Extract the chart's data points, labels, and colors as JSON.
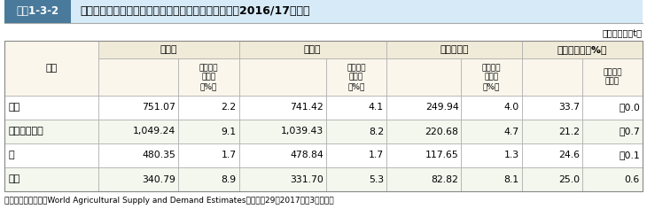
{
  "title_box_label": "図表1-3-2",
  "title_text": "世界全体の穀物等の生産量、消費量、期末在庫量等（2016/17年度）",
  "unit_text": "（単位：百万t）",
  "source_text": "資料：米国農務省「World Agricultural Supply and Demand Estimates」（平成29（2017）年3月時点）",
  "header2_sub": [
    "対前年度\n増減率\n（%）",
    "対前年度\n増減率\n（%）",
    "対前年度\n増減率\n（%）",
    "対前年度\n増減差"
  ],
  "rows": [
    [
      "小麦",
      "751.07",
      "2.2",
      "741.42",
      "4.1",
      "249.94",
      "4.0",
      "33.7",
      "－0.0"
    ],
    [
      "とうもろこし",
      "1,049.24",
      "9.1",
      "1,039.43",
      "8.2",
      "220.68",
      "4.7",
      "21.2",
      "－0.7"
    ],
    [
      "米",
      "480.35",
      "1.7",
      "478.84",
      "1.7",
      "117.65",
      "1.3",
      "24.6",
      "－0.1"
    ],
    [
      "大豆",
      "340.79",
      "8.9",
      "331.70",
      "5.3",
      "82.82",
      "8.1",
      "25.0",
      "0.6"
    ]
  ],
  "col_widths_rel": [
    78,
    66,
    50,
    72,
    50,
    62,
    50,
    50,
    50
  ],
  "colors": {
    "title_box_bg": "#4a7a9b",
    "title_box_text": "#ffffff",
    "title_bar_bg": "#d6eaf8",
    "title_bar_border": "#aaaaaa",
    "header_grp_bg": "#f0ead8",
    "header_sub_bg": "#faf6ec",
    "item_col_bg": "#faf6ec",
    "row_bg_odd": "#ffffff",
    "row_bg_even": "#f3f7ee",
    "border_outer": "#888888",
    "border_inner": "#aaaaaa",
    "text": "#000000"
  }
}
